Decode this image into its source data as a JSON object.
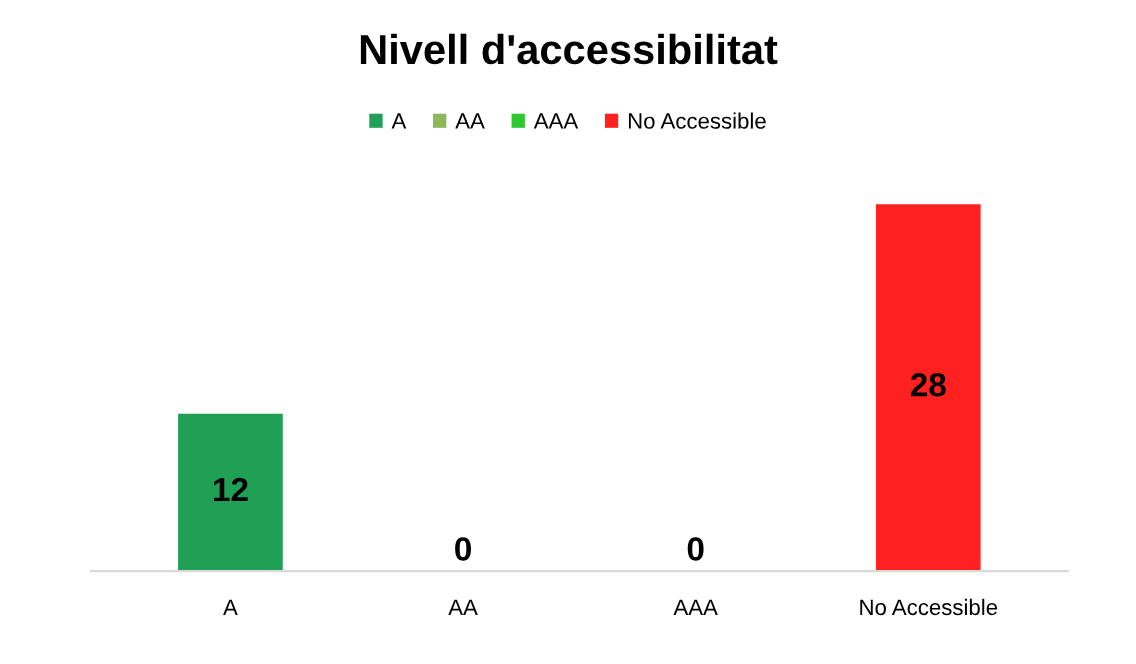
{
  "chart_data": {
    "type": "bar",
    "title": "Nivell d'accessibilitat",
    "stacked": true,
    "categories": [
      "A",
      "AA",
      "AAA",
      "No Accessible"
    ],
    "series": [
      {
        "name": "A",
        "color": "#1fa055",
        "values": [
          12,
          null,
          null,
          null
        ]
      },
      {
        "name": "AA",
        "color": "#8cb85a",
        "values": [
          null,
          0,
          null,
          null
        ]
      },
      {
        "name": "AAA",
        "color": "#2fc832",
        "values": [
          null,
          null,
          0,
          null
        ]
      },
      {
        "name": "No Accessible",
        "color": "#ff2020",
        "values": [
          null,
          null,
          null,
          28
        ]
      }
    ],
    "data_labels": true,
    "legend": "top"
  }
}
